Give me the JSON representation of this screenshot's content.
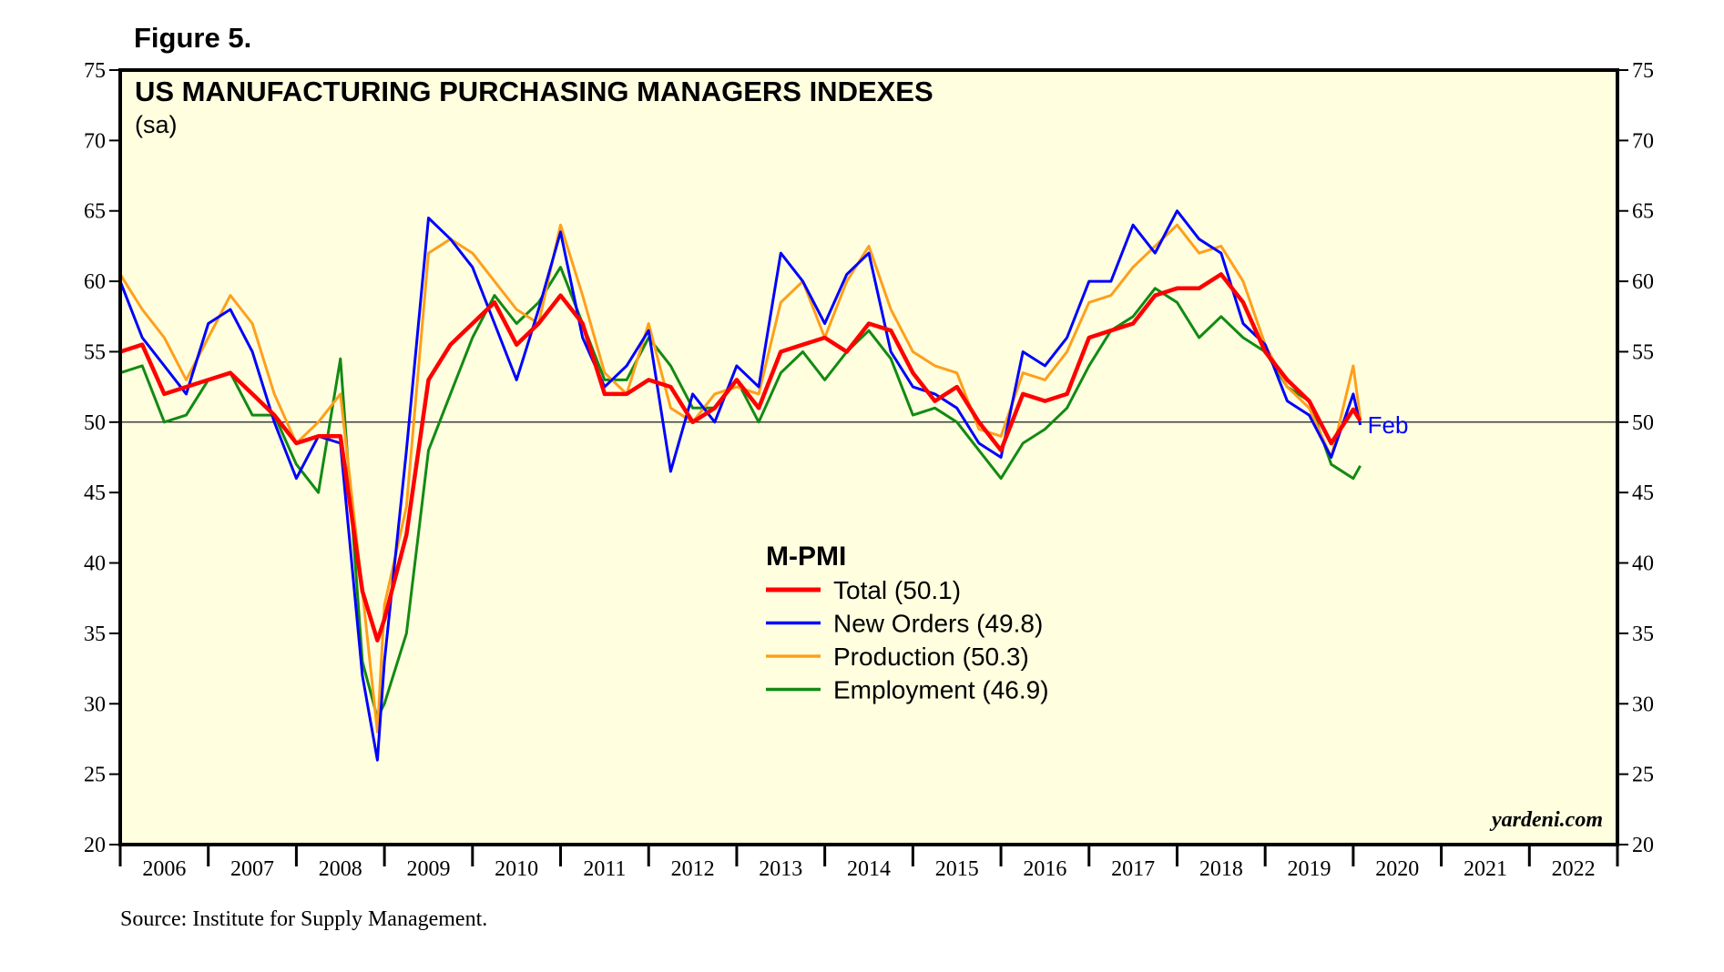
{
  "figure_label": "Figure 5.",
  "source": "Source: Institute for Supply Management.",
  "colors": {
    "plot_background": "#ffffe0",
    "total": "#ff0000",
    "new_orders": "#0000ff",
    "production": "#ff9f1c",
    "employment": "#138a13"
  },
  "chart_data": {
    "type": "line",
    "title": "US MANUFACTURING PURCHASING MANAGERS INDEXES",
    "subtitle": "(sa)",
    "ylim": [
      20,
      75
    ],
    "yticks": [
      20,
      25,
      30,
      35,
      40,
      45,
      50,
      55,
      60,
      65,
      70,
      75
    ],
    "xlim": [
      2006.0,
      2023.0
    ],
    "year_labels": [
      "2006",
      "2007",
      "2008",
      "2009",
      "2010",
      "2011",
      "2012",
      "2013",
      "2014",
      "2015",
      "2016",
      "2017",
      "2018",
      "2019",
      "2020",
      "2021",
      "2022"
    ],
    "reference_line": 50,
    "legend_title": "M-PMI",
    "annotation": "Feb",
    "watermark": "yardeni.com",
    "series": [
      {
        "key": "total",
        "name": "Total (50.1)",
        "x": [
          2006.0,
          2006.25,
          2006.5,
          2006.75,
          2007.0,
          2007.25,
          2007.5,
          2007.75,
          2008.0,
          2008.25,
          2008.5,
          2008.75,
          2008.92,
          2009.0,
          2009.25,
          2009.5,
          2009.75,
          2010.0,
          2010.25,
          2010.5,
          2010.75,
          2011.0,
          2011.25,
          2011.5,
          2011.75,
          2012.0,
          2012.25,
          2012.5,
          2012.75,
          2013.0,
          2013.25,
          2013.5,
          2013.75,
          2014.0,
          2014.25,
          2014.5,
          2014.75,
          2015.0,
          2015.25,
          2015.5,
          2015.75,
          2016.0,
          2016.25,
          2016.5,
          2016.75,
          2017.0,
          2017.25,
          2017.5,
          2017.75,
          2018.0,
          2018.25,
          2018.5,
          2018.75,
          2019.0,
          2019.25,
          2019.5,
          2019.75,
          2020.0,
          2020.08
        ],
        "values": [
          55.0,
          55.5,
          52.0,
          52.5,
          53.0,
          53.5,
          52.0,
          50.5,
          48.5,
          49.0,
          49.0,
          38.0,
          34.5,
          36.0,
          42.0,
          53.0,
          55.5,
          57.0,
          58.5,
          55.5,
          57.0,
          59.0,
          57.0,
          52.0,
          52.0,
          53.0,
          52.5,
          50.0,
          51.0,
          53.0,
          51.0,
          55.0,
          55.5,
          56.0,
          55.0,
          57.0,
          56.5,
          53.5,
          51.5,
          52.5,
          50.0,
          48.0,
          52.0,
          51.5,
          52.0,
          56.0,
          56.5,
          57.0,
          59.0,
          59.5,
          59.5,
          60.5,
          58.5,
          55.0,
          53.0,
          51.5,
          48.5,
          50.9,
          50.1
        ]
      },
      {
        "key": "new_orders",
        "name": "New Orders (49.8)",
        "x": [
          2006.0,
          2006.25,
          2006.5,
          2006.75,
          2007.0,
          2007.25,
          2007.5,
          2007.75,
          2008.0,
          2008.25,
          2008.5,
          2008.75,
          2008.92,
          2009.0,
          2009.25,
          2009.5,
          2009.75,
          2010.0,
          2010.25,
          2010.5,
          2010.75,
          2011.0,
          2011.25,
          2011.5,
          2011.75,
          2012.0,
          2012.25,
          2012.5,
          2012.75,
          2013.0,
          2013.25,
          2013.5,
          2013.75,
          2014.0,
          2014.25,
          2014.5,
          2014.75,
          2015.0,
          2015.25,
          2015.5,
          2015.75,
          2016.0,
          2016.25,
          2016.5,
          2016.75,
          2017.0,
          2017.25,
          2017.5,
          2017.75,
          2018.0,
          2018.25,
          2018.5,
          2018.75,
          2019.0,
          2019.25,
          2019.5,
          2019.75,
          2020.0,
          2020.08
        ],
        "values": [
          60.0,
          56.0,
          54.0,
          52.0,
          57.0,
          58.0,
          55.0,
          50.0,
          46.0,
          49.0,
          48.5,
          32.0,
          26.0,
          33.0,
          48.0,
          64.5,
          63.0,
          61.0,
          57.0,
          53.0,
          58.0,
          63.5,
          56.0,
          52.5,
          54.0,
          56.5,
          46.5,
          52.0,
          50.0,
          54.0,
          52.5,
          62.0,
          60.0,
          57.0,
          60.5,
          62.0,
          55.0,
          52.5,
          52.0,
          51.0,
          48.5,
          47.5,
          55.0,
          54.0,
          56.0,
          60.0,
          60.0,
          64.0,
          62.0,
          65.0,
          63.0,
          62.0,
          57.0,
          55.5,
          51.5,
          50.5,
          47.5,
          52.0,
          49.8
        ]
      },
      {
        "key": "production",
        "name": "Production (50.3)",
        "x": [
          2006.0,
          2006.25,
          2006.5,
          2006.75,
          2007.0,
          2007.25,
          2007.5,
          2007.75,
          2008.0,
          2008.25,
          2008.5,
          2008.75,
          2008.92,
          2009.0,
          2009.25,
          2009.5,
          2009.75,
          2010.0,
          2010.25,
          2010.5,
          2010.75,
          2011.0,
          2011.25,
          2011.5,
          2011.75,
          2012.0,
          2012.25,
          2012.5,
          2012.75,
          2013.0,
          2013.25,
          2013.5,
          2013.75,
          2014.0,
          2014.25,
          2014.5,
          2014.75,
          2015.0,
          2015.25,
          2015.5,
          2015.75,
          2016.0,
          2016.25,
          2016.5,
          2016.75,
          2017.0,
          2017.25,
          2017.5,
          2017.75,
          2018.0,
          2018.25,
          2018.5,
          2018.75,
          2019.0,
          2019.25,
          2019.5,
          2019.75,
          2020.0,
          2020.08
        ],
        "values": [
          60.5,
          58.0,
          56.0,
          53.0,
          56.0,
          59.0,
          57.0,
          52.0,
          48.5,
          50.0,
          52.0,
          38.0,
          28.0,
          37.0,
          44.0,
          62.0,
          63.0,
          62.0,
          60.0,
          58.0,
          57.0,
          64.0,
          59.0,
          53.5,
          52.0,
          57.0,
          51.0,
          50.0,
          52.0,
          52.5,
          52.0,
          58.5,
          60.0,
          56.0,
          60.0,
          62.5,
          58.0,
          55.0,
          54.0,
          53.5,
          49.5,
          49.0,
          53.5,
          53.0,
          55.0,
          58.5,
          59.0,
          61.0,
          62.5,
          64.0,
          62.0,
          62.5,
          60.0,
          55.5,
          52.5,
          51.0,
          47.5,
          54.0,
          50.3
        ]
      },
      {
        "key": "employment",
        "name": "Employment (46.9)",
        "x": [
          2006.0,
          2006.25,
          2006.5,
          2006.75,
          2007.0,
          2007.25,
          2007.5,
          2007.75,
          2008.0,
          2008.25,
          2008.5,
          2008.75,
          2008.92,
          2009.0,
          2009.25,
          2009.5,
          2009.75,
          2010.0,
          2010.25,
          2010.5,
          2010.75,
          2011.0,
          2011.25,
          2011.5,
          2011.75,
          2012.0,
          2012.25,
          2012.5,
          2012.75,
          2013.0,
          2013.25,
          2013.5,
          2013.75,
          2014.0,
          2014.25,
          2014.5,
          2014.75,
          2015.0,
          2015.25,
          2015.5,
          2015.75,
          2016.0,
          2016.25,
          2016.5,
          2016.75,
          2017.0,
          2017.25,
          2017.5,
          2017.75,
          2018.0,
          2018.25,
          2018.5,
          2018.75,
          2019.0,
          2019.25,
          2019.5,
          2019.75,
          2020.0,
          2020.08
        ],
        "values": [
          53.5,
          54.0,
          50.0,
          50.5,
          53.0,
          53.5,
          50.5,
          50.5,
          47.0,
          45.0,
          54.5,
          33.0,
          29.0,
          30.0,
          35.0,
          48.0,
          52.0,
          56.0,
          59.0,
          57.0,
          58.5,
          61.0,
          57.0,
          53.0,
          53.0,
          56.0,
          54.0,
          51.0,
          51.0,
          53.0,
          50.0,
          53.5,
          55.0,
          53.0,
          55.0,
          56.5,
          54.5,
          50.5,
          51.0,
          50.0,
          48.0,
          46.0,
          48.5,
          49.5,
          51.0,
          54.0,
          56.5,
          57.5,
          59.5,
          58.5,
          56.0,
          57.5,
          56.0,
          55.0,
          52.5,
          51.5,
          47.0,
          46.0,
          46.9
        ]
      }
    ]
  }
}
